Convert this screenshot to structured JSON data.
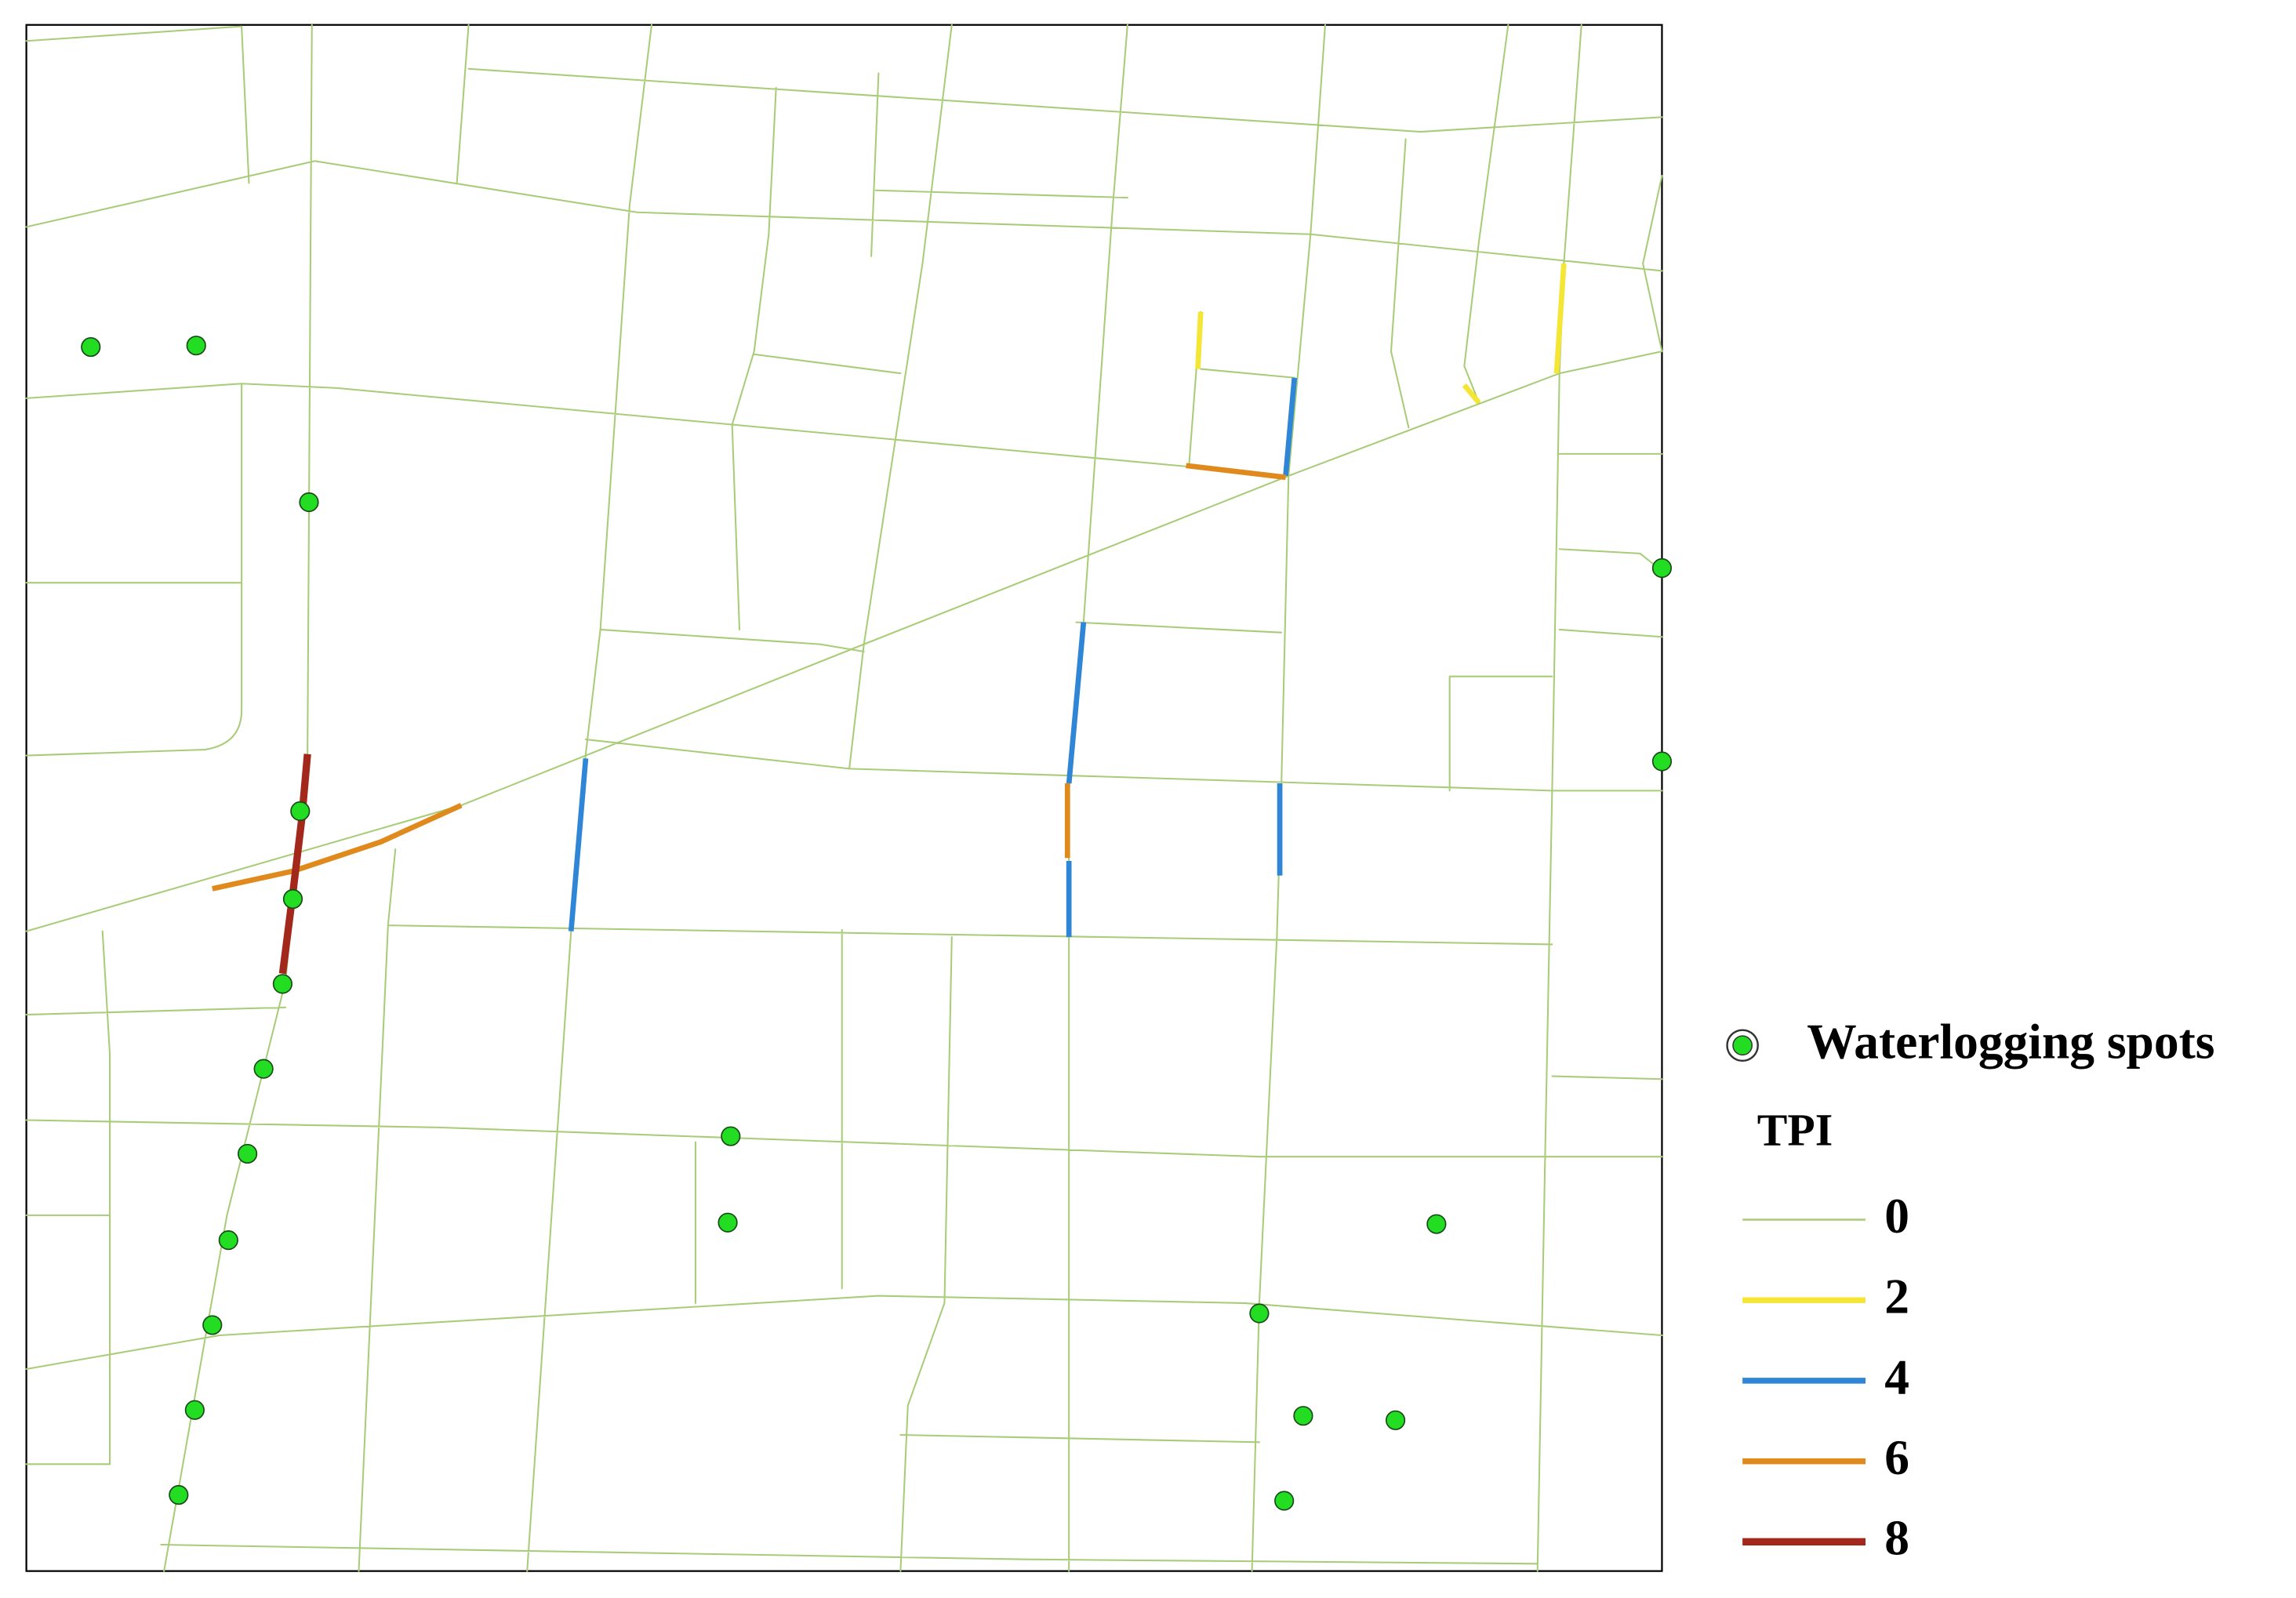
{
  "legend": {
    "spots_label": "Waterlogging spots",
    "title": "TPI",
    "classes": [
      {
        "value": 0,
        "color": "#a9cc78"
      },
      {
        "value": 2,
        "color": "#f5e534"
      },
      {
        "value": 4,
        "color": "#2f86d6"
      },
      {
        "value": 6,
        "color": "#e08a1e"
      },
      {
        "value": 8,
        "color": "#a3281c"
      }
    ]
  },
  "spot_color": "#22dd22"
}
